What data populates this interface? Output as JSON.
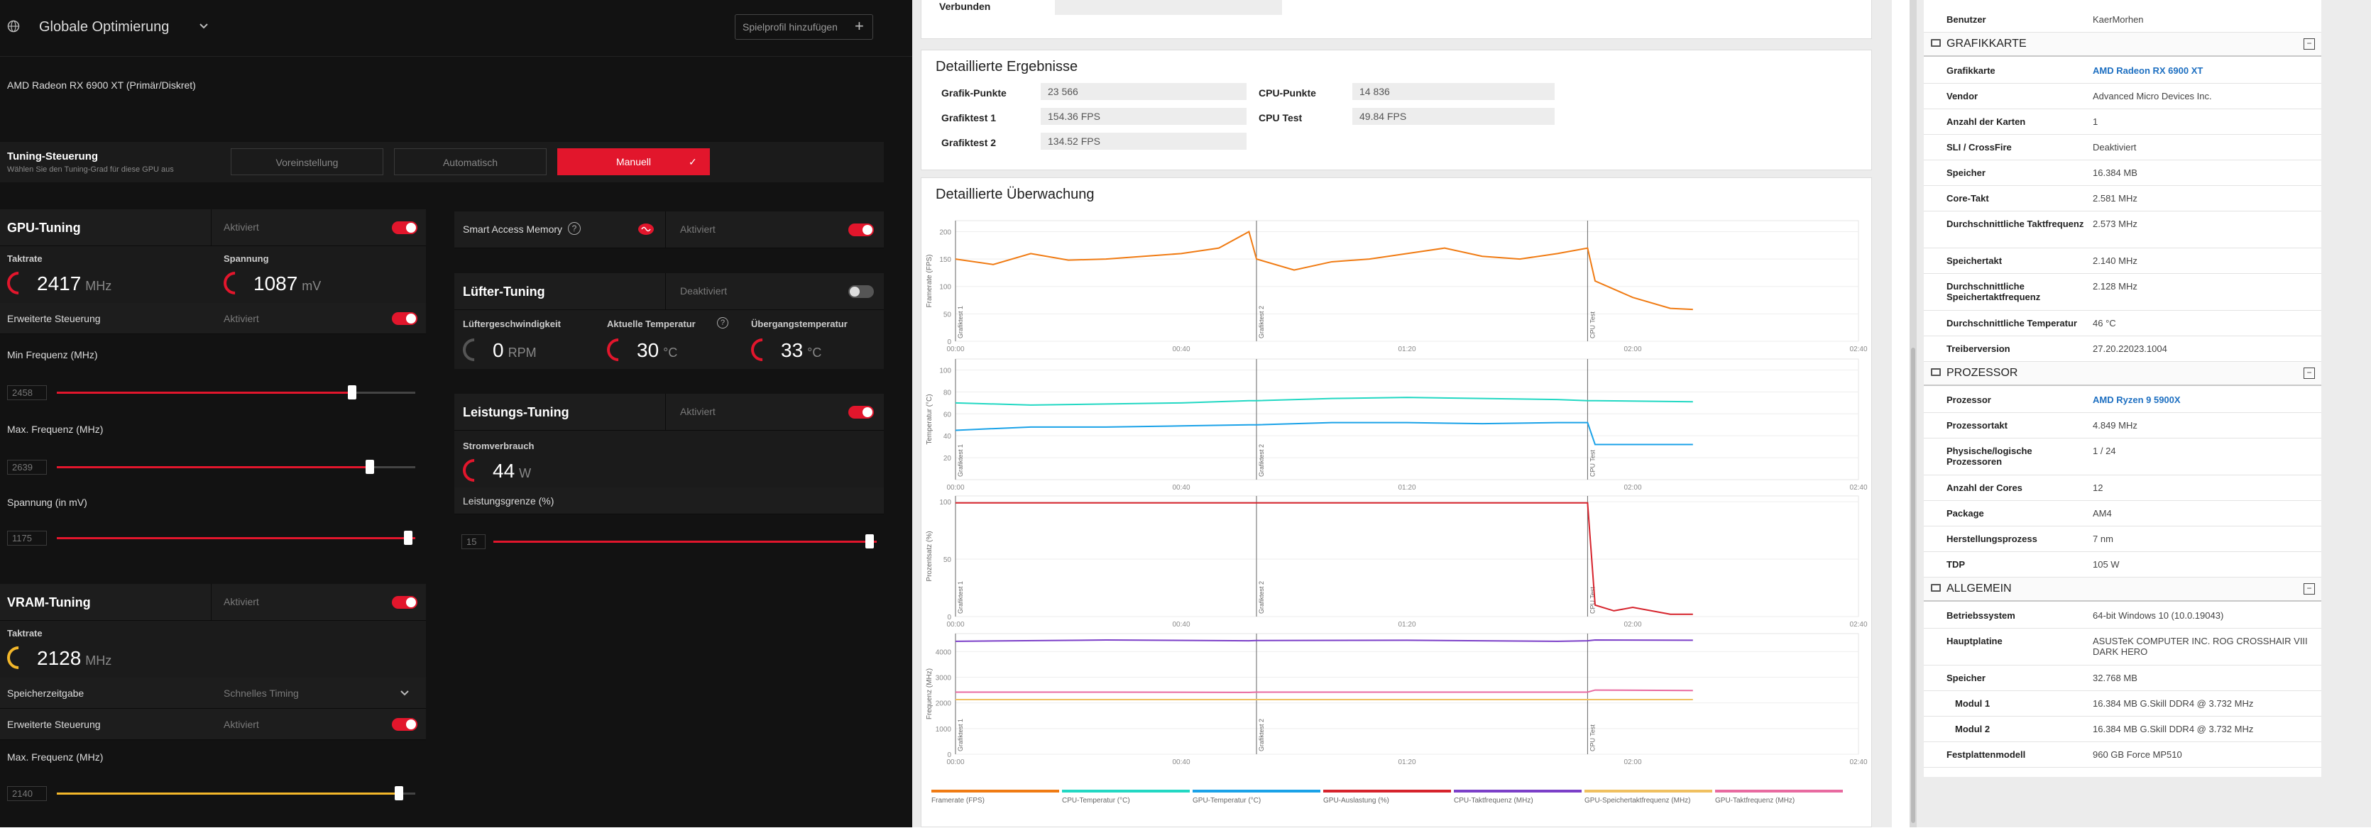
{
  "amd": {
    "profile_title": "Globale Optimierung",
    "add_profile_button": "Spielprofil hinzufügen",
    "gpu_name": "AMD Radeon RX 6900 XT (Primär/Diskret)",
    "tuning_control": {
      "title": "Tuning-Steuerung",
      "subtitle": "Wählen Sie den Tuning-Grad für diese GPU aus",
      "options": [
        "Voreinstellung",
        "Automatisch",
        "Manuell"
      ]
    },
    "gpu_tuning": {
      "title": "GPU-Tuning",
      "status": "Aktiviert",
      "clock_label": "Taktrate",
      "clock_value": "2417",
      "clock_unit": "MHz",
      "voltage_label": "Spannung",
      "voltage_value": "1087",
      "voltage_unit": "mV",
      "advanced_label": "Erweiterte Steuerung",
      "advanced_status": "Aktiviert",
      "min_freq_label": "Min Frequenz (MHz)",
      "min_freq_value": "2458",
      "min_freq_fraction": 0.82,
      "max_freq_label": "Max. Frequenz (MHz)",
      "max_freq_value": "2639",
      "max_freq_fraction": 0.87,
      "voltage_mv_label": "Spannung (in mV)",
      "voltage_mv_value": "1175",
      "voltage_mv_fraction": 1.0
    },
    "vram_tuning": {
      "title": "VRAM-Tuning",
      "status": "Aktiviert",
      "clock_label": "Taktrate",
      "clock_value": "2128",
      "clock_unit": "MHz",
      "timing_label": "Speicherzeitgabe",
      "timing_value": "Schnelles Timing",
      "advanced_label": "Erweiterte Steuerung",
      "advanced_status": "Aktiviert",
      "max_freq_label": "Max. Frequenz (MHz)",
      "max_freq_value": "2140",
      "max_freq_fraction": 0.95
    },
    "sam": {
      "title": "Smart Access Memory",
      "status": "Aktiviert"
    },
    "fan_tuning": {
      "title": "Lüfter-Tuning",
      "status": "Deaktiviert",
      "fan_speed_label": "Lüftergeschwindigkeit",
      "fan_speed_value": "0",
      "fan_speed_unit": "RPM",
      "temp_label": "Aktuelle Temperatur",
      "temp_value": "30",
      "temp_unit": "°C",
      "junction_label": "Übergangstemperatur",
      "junction_value": "33",
      "junction_unit": "°C"
    },
    "power_tuning": {
      "title": "Leistungs-Tuning",
      "status": "Aktiviert",
      "power_label": "Stromverbrauch",
      "power_value": "44",
      "power_unit": "W",
      "limit_label": "Leistungsgrenze (%)",
      "limit_value": "15",
      "limit_fraction": 1.0
    }
  },
  "mark": {
    "top_label": "Verbunden",
    "results_title": "Detaillierte Ergebnisse",
    "results": [
      {
        "label": "Grafik-Punkte",
        "value": "23 566"
      },
      {
        "label": "Grafiktest 1",
        "value": "154.36 FPS"
      },
      {
        "label": "Grafiktest 2",
        "value": "134.52 FPS"
      }
    ],
    "cpu_results": [
      {
        "label": "CPU-Punkte",
        "value": "14 836"
      },
      {
        "label": "CPU Test",
        "value": "49.84 FPS"
      }
    ],
    "monitoring_title": "Detaillierte Überwachung",
    "x_ticks": [
      "00:00",
      "00:40",
      "01:20",
      "02:00",
      "02:40"
    ],
    "section_labels": [
      "Grafiktest 1",
      "Grafiktest 2",
      "CPU Test"
    ],
    "legend": [
      {
        "label": "Framerate (FPS)",
        "color": "#f07b13"
      },
      {
        "label": "CPU-Temperatur (°C)",
        "color": "#22d8c3"
      },
      {
        "label": "GPU-Temperatur (°C)",
        "color": "#1aa2e8"
      },
      {
        "label": "GPU-Auslastung (%)",
        "color": "#d6232c"
      },
      {
        "label": "CPU-Taktfrequenz (MHz)",
        "color": "#7b3fc8"
      },
      {
        "label": "GPU-Speichertaktfrequenz (MHz)",
        "color": "#f0c060"
      },
      {
        "label": "GPU-Taktfrequenz (MHz)",
        "color": "#e86aa0"
      }
    ]
  },
  "chart_data": [
    {
      "type": "line",
      "ylabel": "Framerate (FPS)",
      "y_ticks": [
        "200",
        "150",
        "100",
        "50",
        "0"
      ],
      "ylim": [
        0,
        220
      ],
      "x": [
        0,
        10,
        20,
        30,
        40,
        50,
        60,
        70,
        78,
        80,
        90,
        100,
        110,
        120,
        130,
        140,
        150,
        160,
        168,
        170,
        180,
        190,
        196
      ],
      "series": [
        {
          "name": "Framerate (FPS)",
          "values": [
            150,
            140,
            160,
            148,
            150,
            155,
            160,
            170,
            200,
            150,
            130,
            145,
            150,
            160,
            170,
            155,
            150,
            160,
            170,
            110,
            80,
            60,
            58
          ]
        }
      ]
    },
    {
      "type": "line",
      "ylabel": "Temperatur (°C)",
      "y_ticks": [
        "100",
        "80",
        "60",
        "40",
        "20"
      ],
      "ylim": [
        0,
        110
      ],
      "x": [
        0,
        20,
        40,
        60,
        78,
        80,
        100,
        120,
        140,
        160,
        168,
        170,
        196
      ],
      "series": [
        {
          "name": "CPU-Temperatur (°C)",
          "values": [
            70,
            68,
            69,
            70,
            72,
            72,
            74,
            75,
            74,
            73,
            72,
            72,
            71
          ]
        },
        {
          "name": "GPU-Temperatur (°C)",
          "values": [
            45,
            48,
            48,
            49,
            50,
            50,
            52,
            52,
            51,
            52,
            52,
            32,
            32
          ]
        }
      ]
    },
    {
      "type": "line",
      "ylabel": "Prozentsatz (%)",
      "y_ticks": [
        "100",
        "50",
        "0"
      ],
      "ylim": [
        0,
        105
      ],
      "x": [
        0,
        40,
        78,
        80,
        120,
        160,
        168,
        170,
        175,
        180,
        190,
        196
      ],
      "series": [
        {
          "name": "GPU-Auslastung (%)",
          "values": [
            99,
            99,
            99,
            99,
            99,
            99,
            99,
            10,
            5,
            8,
            2,
            2
          ]
        }
      ]
    },
    {
      "type": "line",
      "ylabel": "Frequenz (MHz)",
      "y_ticks": [
        "4000",
        "3000",
        "2000",
        "1000",
        "0"
      ],
      "ylim": [
        0,
        4700
      ],
      "x": [
        0,
        40,
        78,
        80,
        120,
        160,
        168,
        170,
        196
      ],
      "series": [
        {
          "name": "CPU-Taktfrequenz (MHz)",
          "values": [
            4400,
            4450,
            4420,
            4430,
            4440,
            4400,
            4420,
            4450,
            4440
          ]
        },
        {
          "name": "GPU-Speichertaktfrequenz (MHz)",
          "values": [
            2130,
            2130,
            2130,
            2130,
            2130,
            2130,
            2130,
            2130,
            2130
          ]
        },
        {
          "name": "GPU-Taktfrequenz (MHz)",
          "values": [
            2420,
            2420,
            2410,
            2420,
            2420,
            2420,
            2420,
            2500,
            2480
          ]
        }
      ]
    }
  ],
  "sys": {
    "user_label": "Benutzer",
    "user_value": "KaerMorhen",
    "gpu_section": "GRAFIKKARTE",
    "gpu_rows": [
      {
        "k": "Grafikkarte",
        "v": "AMD Radeon RX 6900 XT",
        "link": true
      },
      {
        "k": "Vendor",
        "v": "Advanced Micro Devices Inc."
      },
      {
        "k": "Anzahl der Karten",
        "v": "1"
      },
      {
        "k": "SLI / CrossFire",
        "v": "Deaktiviert"
      },
      {
        "k": "Speicher",
        "v": "16.384 MB"
      },
      {
        "k": "Core-Takt",
        "v": "2.581 MHz"
      },
      {
        "k": "Durchschnittliche Taktfrequenz",
        "v": "2.573 MHz"
      },
      {
        "k": "Speichertakt",
        "v": "2.140 MHz"
      },
      {
        "k": "Durchschnittliche Speichertaktfrequenz",
        "v": "2.128 MHz"
      },
      {
        "k": "Durchschnittliche Temperatur",
        "v": "46 °C"
      },
      {
        "k": "Treiberversion",
        "v": "27.20.22023.1004"
      }
    ],
    "cpu_section": "PROZESSOR",
    "cpu_rows": [
      {
        "k": "Prozessor",
        "v": "AMD Ryzen 9 5900X",
        "link": true
      },
      {
        "k": "Prozessortakt",
        "v": "4.849 MHz"
      },
      {
        "k": "Physische/logische Prozessoren",
        "v": "1 / 24"
      },
      {
        "k": "Anzahl der Cores",
        "v": "12"
      },
      {
        "k": "Package",
        "v": "AM4"
      },
      {
        "k": "Herstellungsprozess",
        "v": "7 nm"
      },
      {
        "k": "TDP",
        "v": "105 W"
      }
    ],
    "general_section": "ALLGEMEIN",
    "general_rows": [
      {
        "k": "Betriebssystem",
        "v": "64-bit Windows 10 (10.0.19043)"
      },
      {
        "k": "Hauptplatine",
        "v": "ASUSTeK COMPUTER INC. ROG CROSSHAIR VIII DARK HERO"
      },
      {
        "k": "Speicher",
        "v": "32.768 MB"
      },
      {
        "k": "Modul 1",
        "v": "16.384 MB G.Skill DDR4 @ 3.732 MHz",
        "indent": true
      },
      {
        "k": "Modul 2",
        "v": "16.384 MB G.Skill DDR4 @ 3.732 MHz",
        "indent": true
      },
      {
        "k": "Festplattenmodell",
        "v": "960 GB Force MP510"
      }
    ]
  }
}
